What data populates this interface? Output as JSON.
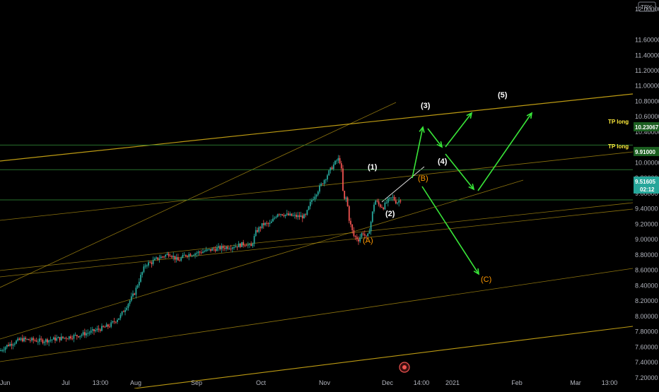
{
  "header": {
    "currency": "TRY"
  },
  "colors": {
    "bg": "#000000",
    "up": "#26a69a",
    "down": "#ef5350",
    "channel": "#c8a415",
    "hline": "#2e7d32",
    "arrow": "#39e639",
    "tag_bg": "#1b5e20",
    "price_tag_bg": "#26a69a"
  },
  "chart_data": {
    "type": "candlestick",
    "x_labels": [
      "Jun",
      "Jul",
      "13:00",
      "Aug",
      "Sep",
      "Oct",
      "Nov",
      "Dec",
      "14:00",
      "2021",
      "Feb",
      "Mar",
      "13:00"
    ],
    "x_ticks_t": [
      0,
      93,
      142,
      192,
      278,
      369,
      459,
      548,
      596,
      640,
      731,
      814,
      862
    ],
    "y_ticks": [
      "12.00000",
      "11.60000",
      "11.40000",
      "11.20000",
      "11.00000",
      "10.80000",
      "10.60000",
      "10.40000",
      "10.00000",
      "9.80000",
      "9.60000",
      "9.40000",
      "9.20000",
      "9.00000",
      "8.80000",
      "8.60000",
      "8.40000",
      "8.20000",
      "8.00000",
      "7.80000",
      "7.60000",
      "7.40000",
      "7.20000"
    ],
    "y_range": [
      7.06,
      12.12
    ],
    "price_path": [
      [
        0,
        7.55
      ],
      [
        10,
        7.62
      ],
      [
        30,
        7.7
      ],
      [
        60,
        7.68
      ],
      [
        90,
        7.72
      ],
      [
        110,
        7.75
      ],
      [
        130,
        7.8
      ],
      [
        155,
        7.88
      ],
      [
        170,
        8.0
      ],
      [
        180,
        8.15
      ],
      [
        190,
        8.3
      ],
      [
        198,
        8.5
      ],
      [
        206,
        8.68
      ],
      [
        214,
        8.7
      ],
      [
        222,
        8.75
      ],
      [
        230,
        8.78
      ],
      [
        240,
        8.82
      ],
      [
        252,
        8.72
      ],
      [
        262,
        8.8
      ],
      [
        275,
        8.82
      ],
      [
        290,
        8.85
      ],
      [
        305,
        8.88
      ],
      [
        320,
        8.9
      ],
      [
        335,
        8.92
      ],
      [
        348,
        8.95
      ],
      [
        355,
        8.9
      ],
      [
        362,
        9.1
      ],
      [
        372,
        9.2
      ],
      [
        382,
        9.2
      ],
      [
        393,
        9.35
      ],
      [
        405,
        9.32
      ],
      [
        420,
        9.3
      ],
      [
        432,
        9.3
      ],
      [
        440,
        9.5
      ],
      [
        450,
        9.65
      ],
      [
        460,
        9.8
      ],
      [
        470,
        9.95
      ],
      [
        478,
        10.05
      ],
      [
        482,
        10.0
      ],
      [
        486,
        9.5
      ],
      [
        490,
        9.55
      ],
      [
        494,
        9.25
      ],
      [
        500,
        9.05
      ],
      [
        507,
        9.0
      ],
      [
        513,
        9.1
      ],
      [
        519,
        9.0
      ],
      [
        524,
        9.2
      ],
      [
        530,
        9.52
      ],
      [
        536,
        9.45
      ],
      [
        542,
        9.42
      ],
      [
        548,
        9.5
      ],
      [
        555,
        9.55
      ],
      [
        561,
        9.48
      ],
      [
        567,
        9.53
      ]
    ],
    "last_price": "9.51605",
    "countdown": "02:12",
    "hlines": [
      {
        "price": "10.23067",
        "label": "TP long"
      },
      {
        "price": "9.91000",
        "label": "TP long"
      },
      {
        "price": "9.51605",
        "label": ""
      }
    ],
    "waves_white": [
      "(1)",
      "(2)",
      "(3)",
      "(4)",
      "(5)"
    ],
    "waves_orange": [
      "(A)",
      "(B)",
      "(C)"
    ]
  }
}
